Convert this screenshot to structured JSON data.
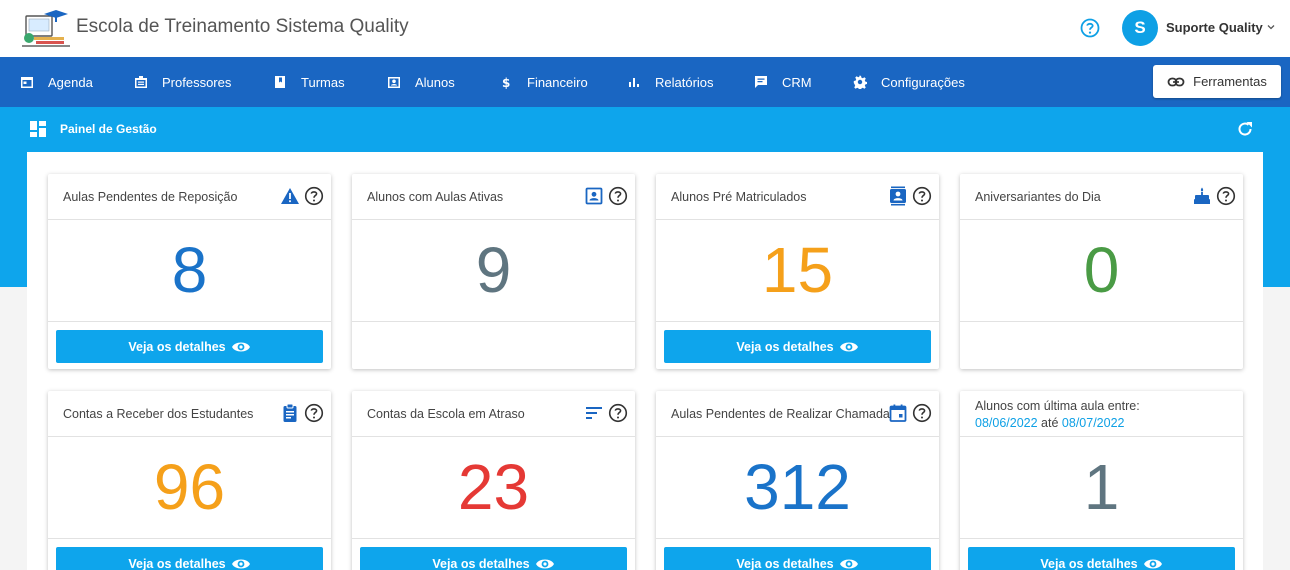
{
  "header": {
    "app_title": "Escola de Treinamento Sistema Quality",
    "user_initial": "S",
    "user_name": "Suporte Quality"
  },
  "nav": {
    "items": [
      {
        "label": "Agenda",
        "icon": "calendar-icon"
      },
      {
        "label": "Professores",
        "icon": "badge-icon"
      },
      {
        "label": "Turmas",
        "icon": "book-icon"
      },
      {
        "label": "Alunos",
        "icon": "contact-icon"
      },
      {
        "label": "Financeiro",
        "icon": "dollar-icon"
      },
      {
        "label": "Relatórios",
        "icon": "chart-icon"
      },
      {
        "label": "CRM",
        "icon": "chat-icon"
      },
      {
        "label": "Configurações",
        "icon": "gear-icon"
      }
    ],
    "tools_label": "Ferramentas"
  },
  "panel": {
    "title": "Painel de Gestão"
  },
  "colors": {
    "blue": "#1a73c9",
    "gray": "#5f7580",
    "orange": "#f5a01a",
    "green": "#4a9b45",
    "red": "#e53935",
    "accent": "#0ea5ec"
  },
  "cards": [
    {
      "title": "Aulas Pendentes de Reposição",
      "value": "8",
      "color": "blue",
      "icon": "warning-icon",
      "details": "Veja os detalhes"
    },
    {
      "title": "Alunos com Aulas Ativas",
      "value": "9",
      "color": "gray",
      "icon": "contact-icon",
      "details": ""
    },
    {
      "title": "Alunos Pré Matriculados",
      "value": "15",
      "color": "orange",
      "icon": "contacts-book-icon",
      "details": "Veja os detalhes"
    },
    {
      "title": "Aniversariantes do Dia",
      "value": "0",
      "color": "green",
      "icon": "cake-icon",
      "details": ""
    },
    {
      "title": "Contas a Receber dos Estudantes",
      "value": "96",
      "color": "orange",
      "icon": "clipboard-icon",
      "details": "Veja os detalhes"
    },
    {
      "title": "Contas da Escola em Atraso",
      "value": "23",
      "color": "red",
      "icon": "sort-icon",
      "details": "Veja os detalhes"
    },
    {
      "title": "Aulas Pendentes de Realizar Chamada",
      "value": "312",
      "color": "blue",
      "icon": "event-icon",
      "details": "Veja os detalhes"
    },
    {
      "range_prefix": "Alunos com última aula entre:",
      "date_from": "08/06/2022",
      "date_sep": "até",
      "date_to": "08/07/2022",
      "value": "1",
      "color": "gray",
      "details": "Veja os detalhes"
    }
  ]
}
